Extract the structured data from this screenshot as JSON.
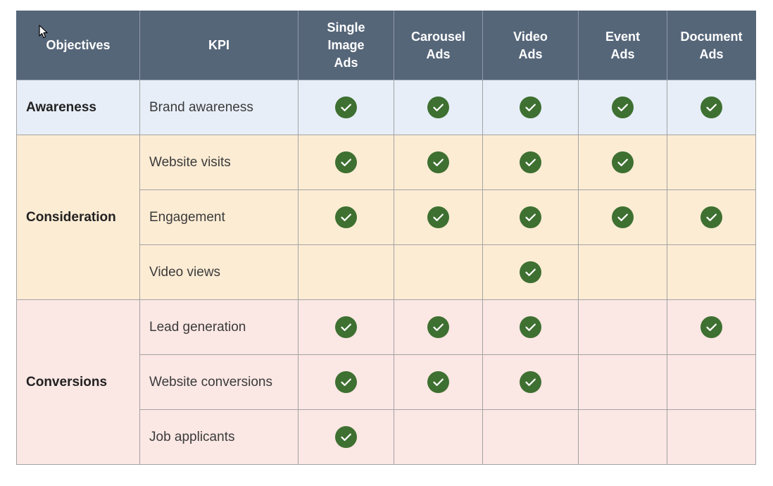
{
  "colors": {
    "header_bg": "#566679",
    "awareness_bg": "#e7eef8",
    "consideration_bg": "#fdecd4",
    "conversions_bg": "#fbe7e4",
    "check_green": "#3e7031"
  },
  "table": {
    "headers": [
      "Objectives",
      "KPI",
      "Single\nImage\nAds",
      "Carousel\nAds",
      "Video\nAds",
      "Event\nAds",
      "Document\nAds"
    ],
    "groups": [
      {
        "objective": "Awareness",
        "rows": [
          {
            "kpi": "Brand awareness",
            "checks": [
              true,
              true,
              true,
              true,
              true
            ]
          }
        ]
      },
      {
        "objective": "Consideration",
        "rows": [
          {
            "kpi": "Website visits",
            "checks": [
              true,
              true,
              true,
              true,
              false
            ]
          },
          {
            "kpi": "Engagement",
            "checks": [
              true,
              true,
              true,
              true,
              true
            ]
          },
          {
            "kpi": "Video views",
            "checks": [
              false,
              false,
              true,
              false,
              false
            ]
          }
        ]
      },
      {
        "objective": "Conversions",
        "rows": [
          {
            "kpi": "Lead generation",
            "checks": [
              true,
              true,
              true,
              false,
              true
            ]
          },
          {
            "kpi": "Website conversions",
            "checks": [
              true,
              true,
              true,
              false,
              false
            ]
          },
          {
            "kpi": "Job applicants",
            "checks": [
              true,
              false,
              false,
              false,
              false
            ]
          }
        ]
      }
    ]
  },
  "icons": {
    "check": "check-circle-icon",
    "cursor": "mouse-pointer-icon"
  }
}
